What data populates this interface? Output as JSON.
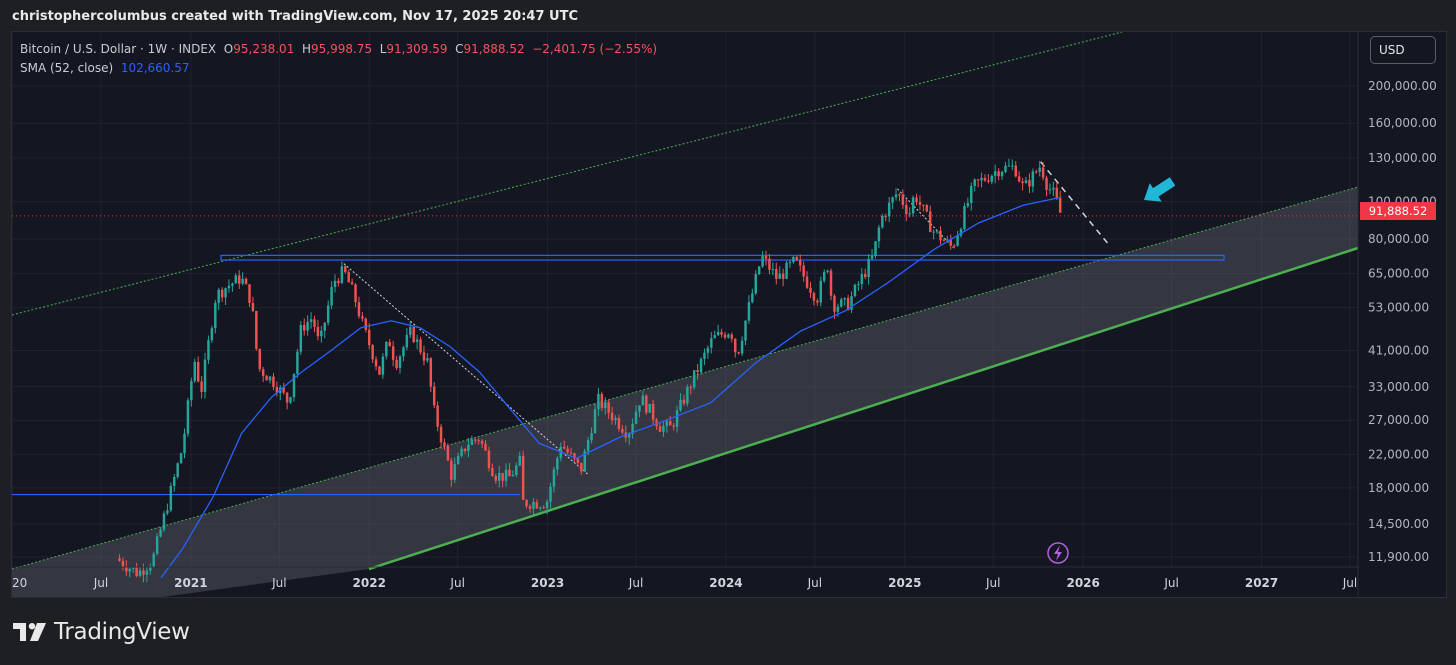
{
  "attribution": "christophercolumbus created with TradingView.com, Nov 17, 2025 20:47 UTC",
  "brand": {
    "name": "TradingView",
    "icon": "tradingview-logo-icon"
  },
  "legend": {
    "symbol": "Bitcoin / U.S. Dollar · 1W · INDEX",
    "o_label": "O",
    "o_value": "95,238.01",
    "h_label": "H",
    "h_value": "95,998.75",
    "l_label": "L",
    "l_value": "91,309.59",
    "c_label": "C",
    "c_value": "91,888.52",
    "change": "−2,401.75 (−2.55%)",
    "sma_label": "SMA (52, close)",
    "sma_value": "102,660.57"
  },
  "currency_button": "USD",
  "last_price": "91,888.52",
  "colors": {
    "background": "#141621",
    "up_candle": "#26a69a",
    "down_candle": "#ef5350",
    "sma_line": "#2962ff",
    "channel_line": "#4caf50",
    "level_line": "#2962ff",
    "arrow": "#21b7d8",
    "price_tag": "#f23645"
  },
  "chart_data": {
    "type": "candlestick",
    "interval": "1W",
    "scale": "log",
    "ylim": [
      11000,
      240000
    ],
    "x_range": [
      "2020-03-01",
      "2027-08-01"
    ],
    "x_ticks": [
      "20",
      "Jul",
      "2021",
      "Jul",
      "2022",
      "Jul",
      "2023",
      "Jul",
      "2024",
      "Jul",
      "2025",
      "Jul",
      "2026",
      "Jul",
      "2027",
      "Jul"
    ],
    "x_tick_dates": [
      "2020-01-01",
      "2020-07-01",
      "2021-01-01",
      "2021-07-01",
      "2022-01-01",
      "2022-07-01",
      "2023-01-01",
      "2023-07-01",
      "2024-01-01",
      "2024-07-01",
      "2025-01-01",
      "2025-07-01",
      "2026-01-01",
      "2026-07-01",
      "2027-01-01",
      "2027-07-01"
    ],
    "y_ticks": [
      {
        "value": 200000,
        "label": "200,000.00"
      },
      {
        "value": 160000,
        "label": "160,000.00"
      },
      {
        "value": 130000,
        "label": "130,000.00"
      },
      {
        "value": 100000,
        "label": "100,000.00"
      },
      {
        "value": 80000,
        "label": "80,000.00"
      },
      {
        "value": 65000,
        "label": "65,000.00"
      },
      {
        "value": 53000,
        "label": "53,000.00"
      },
      {
        "value": 41000,
        "label": "41,000.00"
      },
      {
        "value": 33000,
        "label": "33,000.00"
      },
      {
        "value": 27000,
        "label": "27,000.00"
      },
      {
        "value": 22000,
        "label": "22,000.00"
      },
      {
        "value": 18000,
        "label": "18,000.00"
      },
      {
        "value": 14500,
        "label": "14,500.00"
      },
      {
        "value": 11900,
        "label": "11,900.00"
      }
    ],
    "price_series": [
      [
        "2020-08-01",
        11800
      ],
      [
        "2020-09-15",
        10800
      ],
      [
        "2020-10-15",
        11700
      ],
      [
        "2020-11-15",
        16500
      ],
      [
        "2020-12-15",
        23000
      ],
      [
        "2021-01-08",
        39000
      ],
      [
        "2021-01-22",
        32000
      ],
      [
        "2021-02-21",
        57000
      ],
      [
        "2021-03-14",
        60000
      ],
      [
        "2021-04-14",
        63500
      ],
      [
        "2021-05-05",
        55000
      ],
      [
        "2021-05-19",
        37000
      ],
      [
        "2021-06-20",
        34000
      ],
      [
        "2021-07-20",
        30000
      ],
      [
        "2021-08-15",
        47000
      ],
      [
        "2021-09-07",
        50000
      ],
      [
        "2021-09-21",
        42000
      ],
      [
        "2021-10-20",
        62000
      ],
      [
        "2021-11-10",
        66000
      ],
      [
        "2021-12-01",
        57000
      ],
      [
        "2021-12-20",
        47000
      ],
      [
        "2022-01-22",
        36000
      ],
      [
        "2022-02-10",
        44000
      ],
      [
        "2022-02-24",
        38000
      ],
      [
        "2022-03-28",
        46000
      ],
      [
        "2022-05-01",
        38000
      ],
      [
        "2022-05-12",
        29000
      ],
      [
        "2022-06-18",
        19500
      ],
      [
        "2022-07-20",
        23500
      ],
      [
        "2022-08-14",
        24300
      ],
      [
        "2022-09-15",
        19500
      ],
      [
        "2022-10-15",
        19200
      ],
      [
        "2022-11-05",
        21000
      ],
      [
        "2022-11-12",
        16500
      ],
      [
        "2022-12-30",
        16500
      ],
      [
        "2023-01-28",
        23500
      ],
      [
        "2023-03-10",
        20000
      ],
      [
        "2023-04-14",
        30500
      ],
      [
        "2023-06-15",
        25000
      ],
      [
        "2023-07-10",
        31000
      ],
      [
        "2023-08-20",
        26000
      ],
      [
        "2023-09-10",
        25800
      ],
      [
        "2023-10-25",
        34500
      ],
      [
        "2023-12-05",
        44000
      ],
      [
        "2024-01-11",
        46500
      ],
      [
        "2024-01-23",
        39500
      ],
      [
        "2024-02-15",
        52000
      ],
      [
        "2024-03-14",
        72000
      ],
      [
        "2024-04-15",
        63000
      ],
      [
        "2024-05-21",
        70000
      ],
      [
        "2024-07-05",
        56000
      ],
      [
        "2024-07-28",
        69000
      ],
      [
        "2024-08-05",
        54000
      ],
      [
        "2024-09-06",
        54000
      ],
      [
        "2024-10-28",
        72000
      ],
      [
        "2024-11-13",
        90000
      ],
      [
        "2024-12-17",
        106000
      ],
      [
        "2025-01-10",
        93000
      ],
      [
        "2025-01-21",
        105000
      ],
      [
        "2025-02-28",
        84000
      ],
      [
        "2025-04-08",
        76000
      ],
      [
        "2025-05-22",
        110000
      ],
      [
        "2025-07-14",
        122000
      ],
      [
        "2025-08-14",
        123000
      ],
      [
        "2025-09-01",
        108000
      ],
      [
        "2025-10-06",
        124500
      ],
      [
        "2025-10-20",
        110000
      ],
      [
        "2025-11-03",
        104000
      ],
      [
        "2025-11-17",
        91888
      ]
    ],
    "sma_52_series": [
      [
        "2020-11-01",
        10500
      ],
      [
        "2020-12-15",
        12500
      ],
      [
        "2021-02-15",
        17000
      ],
      [
        "2021-04-15",
        25000
      ],
      [
        "2021-06-15",
        31000
      ],
      [
        "2021-08-15",
        36000
      ],
      [
        "2021-10-15",
        41000
      ],
      [
        "2021-12-15",
        47000
      ],
      [
        "2022-02-15",
        49000
      ],
      [
        "2022-04-15",
        47000
      ],
      [
        "2022-06-15",
        42000
      ],
      [
        "2022-08-15",
        36000
      ],
      [
        "2022-10-15",
        29000
      ],
      [
        "2022-12-15",
        23500
      ],
      [
        "2023-03-01",
        21500
      ],
      [
        "2023-06-01",
        24500
      ],
      [
        "2023-09-01",
        27000
      ],
      [
        "2023-12-01",
        30000
      ],
      [
        "2024-03-01",
        38000
      ],
      [
        "2024-06-01",
        46000
      ],
      [
        "2024-09-01",
        52000
      ],
      [
        "2024-12-01",
        62000
      ],
      [
        "2025-03-01",
        75000
      ],
      [
        "2025-06-01",
        88000
      ],
      [
        "2025-09-01",
        98000
      ],
      [
        "2025-11-17",
        102660
      ]
    ],
    "last_price": 91888.52
  }
}
